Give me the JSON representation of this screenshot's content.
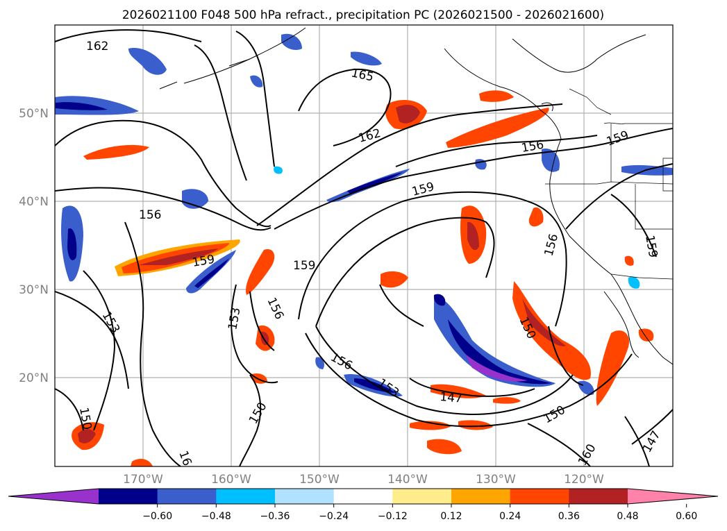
{
  "figure": {
    "title": "2026021100 F048 500 hPa refract., precipitation PC (2026021500 - 2026021600)"
  },
  "map": {
    "lon_labels": [
      "170°W",
      "160°W",
      "150°W",
      "140°W",
      "130°W",
      "120°W"
    ],
    "lat_labels": [
      "50°N",
      "40°N",
      "30°N",
      "20°N"
    ],
    "contour_labels": [
      "162",
      "165",
      "162",
      "156",
      "159",
      "159",
      "156",
      "159",
      "159",
      "156",
      "159",
      "153",
      "153",
      "156",
      "156",
      "150",
      "147",
      "150",
      "147",
      "150",
      "150",
      "153",
      "160",
      "16"
    ]
  },
  "colorbar": {
    "ticks": [
      "−0.60",
      "−0.48",
      "−0.36",
      "−0.24",
      "−0.12",
      "0.12",
      "0.24",
      "0.36",
      "0.48",
      "0.60"
    ],
    "colors": [
      "#9932CC",
      "#00008B",
      "#3A5FCD",
      "#00BFFF",
      "#B0E2FF",
      "#FFFFFF",
      "#FFEC8B",
      "#FFA500",
      "#FF4500",
      "#B22222",
      "#FF82AB"
    ]
  },
  "colors": {
    "contour": "#000000",
    "grid": "#b0b0b0",
    "coast": "#000000"
  }
}
